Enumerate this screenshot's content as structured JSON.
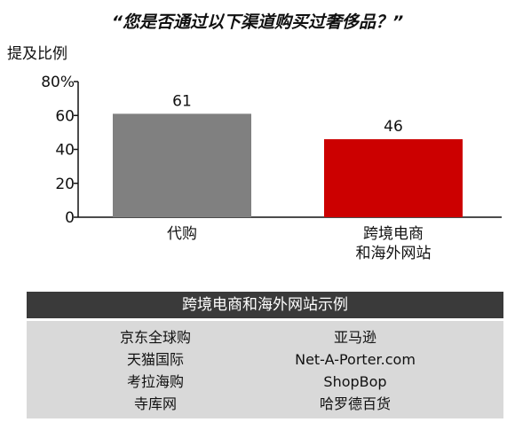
{
  "chart_data": {
    "type": "bar",
    "title": "“您是否通过以下渠道购买过奢侈品？”",
    "ylabel": "提及比例",
    "ylim": [
      0,
      80
    ],
    "yticks": [
      "0",
      "20",
      "40",
      "60",
      "80%"
    ],
    "ytick_values": [
      0,
      20,
      40,
      60,
      80
    ],
    "categories": [
      [
        "代购"
      ],
      [
        "跨境电商",
        "和海外网站"
      ]
    ],
    "values": [
      61,
      46
    ],
    "data_labels": [
      "61",
      "46"
    ],
    "colors": [
      "#808080",
      "#cc0000"
    ],
    "grid": false
  },
  "panel": {
    "heading": "跨境电商和海外网站示例",
    "left_items": [
      "京东全球购",
      "天猫国际",
      "考拉海购",
      "寺库网"
    ],
    "right_items": [
      "亚马逊",
      "Net-A-Porter.com",
      "ShopBop",
      "哈罗德百货"
    ]
  }
}
